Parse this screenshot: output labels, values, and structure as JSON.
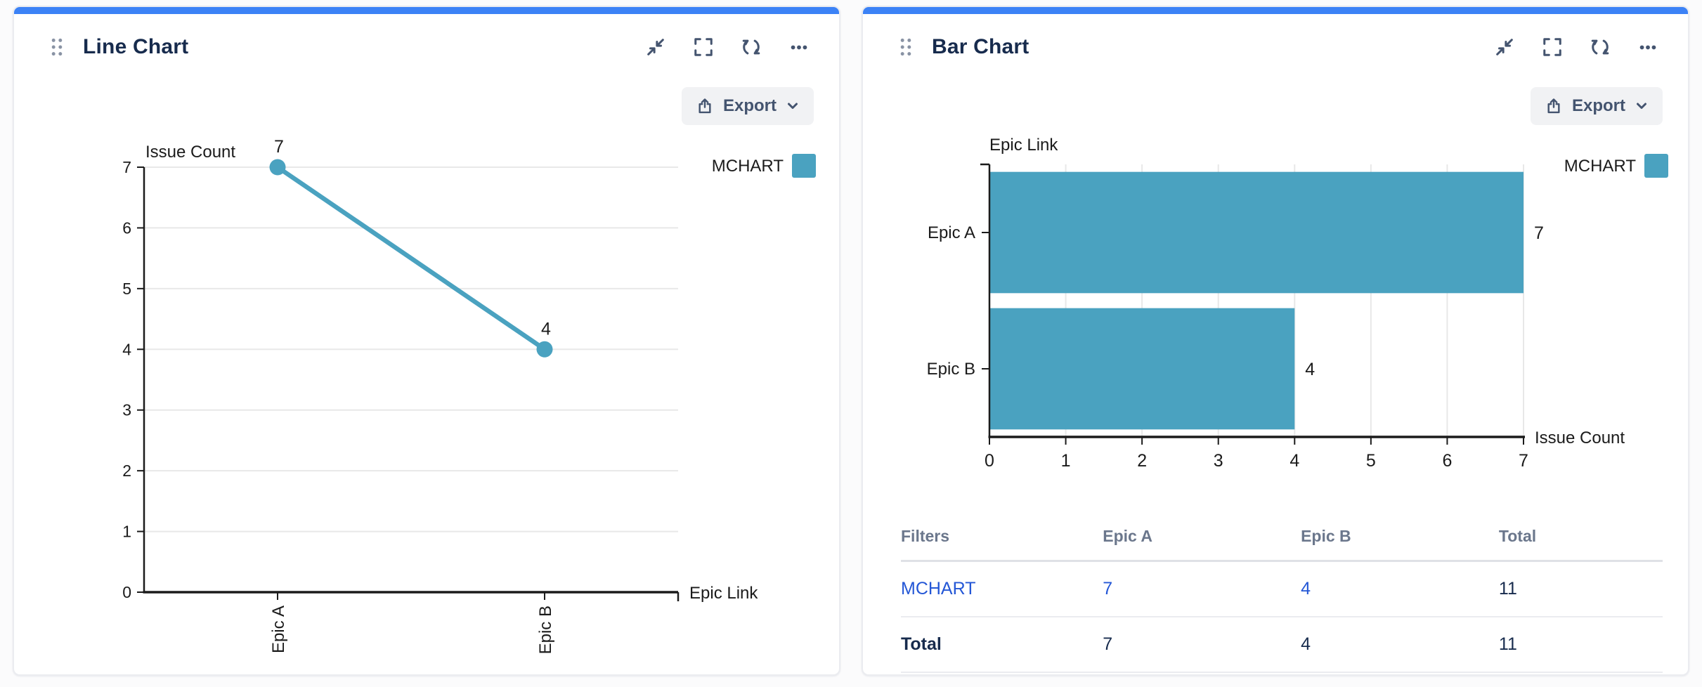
{
  "colors": {
    "accent_bar": "#3c82f6",
    "series_teal": "#4aa2c0",
    "link_blue": "#2457d6",
    "title_text": "#172b4d",
    "icon": "#44546f",
    "muted_text": "#6b778c",
    "grid_line": "#e8e8e8",
    "card_border": "#ebecf0",
    "export_bg": "#f1f2f4",
    "chart_text": "#1b1b1b"
  },
  "panels": [
    {
      "title": "Line Chart",
      "header_icons": [
        "drag-handle-icon",
        "collapse-arrows-icon",
        "fullscreen-icon",
        "refresh-icon",
        "ellipsis-icon"
      ],
      "toolbar": {
        "export_label": "Export",
        "export_icon": "upload-icon",
        "chevron": "chevron-down-icon"
      },
      "legend": {
        "label": "MCHART",
        "color": "#4aa2c0"
      }
    },
    {
      "title": "Bar Chart",
      "header_icons": [
        "drag-handle-icon",
        "collapse-arrows-icon",
        "fullscreen-icon",
        "refresh-icon",
        "ellipsis-icon"
      ],
      "toolbar": {
        "export_label": "Export",
        "export_icon": "upload-icon",
        "chevron": "chevron-down-icon"
      },
      "legend": {
        "label": "MCHART",
        "color": "#4aa2c0"
      },
      "table": {
        "headers": [
          "Filters",
          "Epic A",
          "Epic B",
          "Total"
        ],
        "rows": [
          {
            "label": "MCHART",
            "cells": [
              "7",
              "4",
              "11"
            ],
            "link": true
          },
          {
            "label": "Total",
            "cells": [
              "7",
              "4",
              "11"
            ],
            "link": false
          }
        ]
      }
    }
  ],
  "chart_data": [
    {
      "type": "line",
      "categories": [
        "Epic A",
        "Epic B"
      ],
      "series": [
        {
          "name": "MCHART",
          "color": "#4aa2c0",
          "values": [
            7,
            4
          ]
        }
      ],
      "data_labels": [
        7,
        4
      ],
      "xlabel": "Epic Link",
      "ylabel": "Issue Count",
      "ylim": [
        0,
        7
      ],
      "yticks": [
        0,
        1,
        2,
        3,
        4,
        5,
        6,
        7
      ],
      "grid": true,
      "legend_position": "top-right",
      "x_tick_rotation": -90
    },
    {
      "type": "bar",
      "orientation": "horizontal",
      "categories": [
        "Epic A",
        "Epic B"
      ],
      "series": [
        {
          "name": "MCHART",
          "color": "#4aa2c0",
          "values": [
            7,
            4
          ]
        }
      ],
      "data_labels": [
        7,
        4
      ],
      "xlabel": "Issue Count",
      "ylabel": "Epic Link",
      "xlim": [
        0,
        7
      ],
      "xticks": [
        0,
        1,
        2,
        3,
        4,
        5,
        6,
        7
      ],
      "grid": true,
      "legend_position": "top-right"
    },
    {
      "type": "table",
      "columns": [
        "Filters",
        "Epic A",
        "Epic B",
        "Total"
      ],
      "rows": [
        [
          "MCHART",
          7,
          4,
          11
        ],
        [
          "Total",
          7,
          4,
          11
        ]
      ]
    }
  ]
}
